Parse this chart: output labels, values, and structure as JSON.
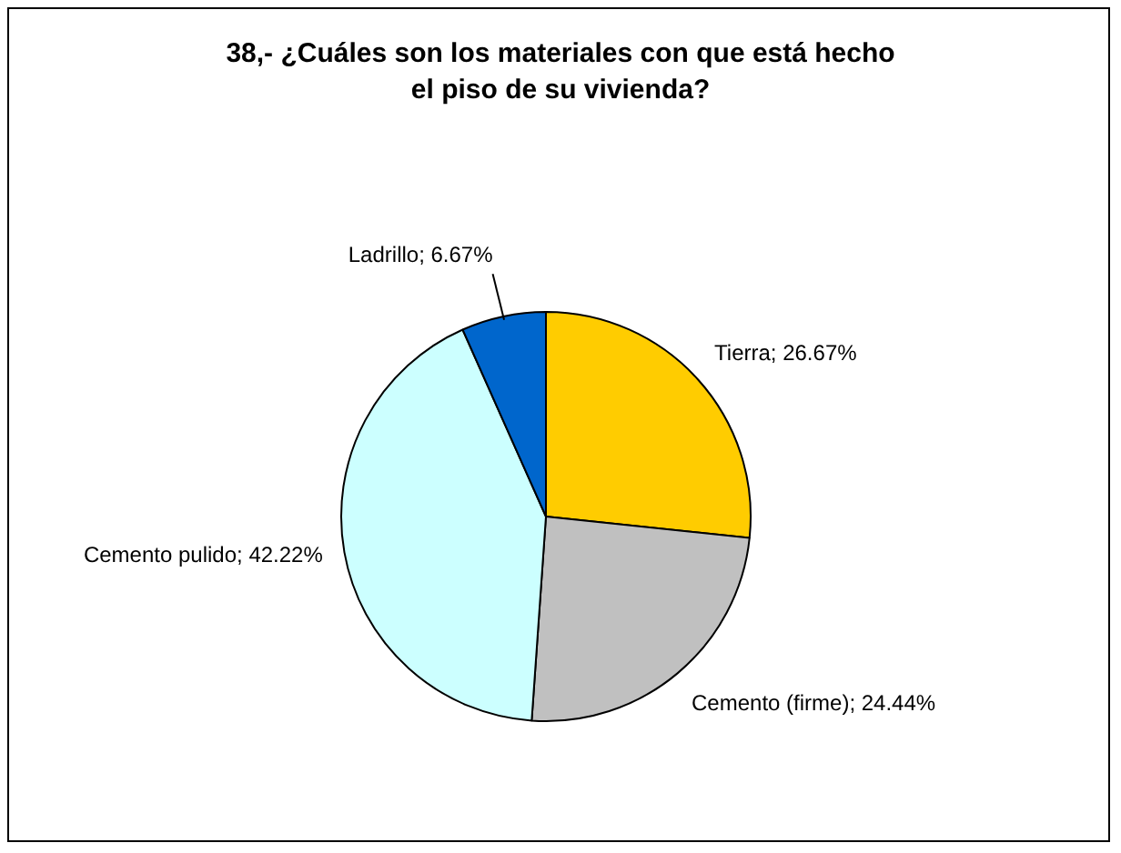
{
  "chart_data": {
    "type": "pie",
    "title": "38,- ¿Cuáles son los materiales con que está hecho el piso de su vivienda?",
    "categories": [
      "Tierra",
      "Cemento (firme)",
      "Cemento pulido",
      "Ladrillo"
    ],
    "values": [
      26.67,
      24.44,
      42.22,
      6.67
    ],
    "value_labels": [
      "26.67%",
      "24.44%",
      "42.22%",
      "6.67%"
    ],
    "colors": [
      "#ffcc00",
      "#c0c0c0",
      "#ccffff",
      "#0066cc"
    ],
    "legend": false
  }
}
